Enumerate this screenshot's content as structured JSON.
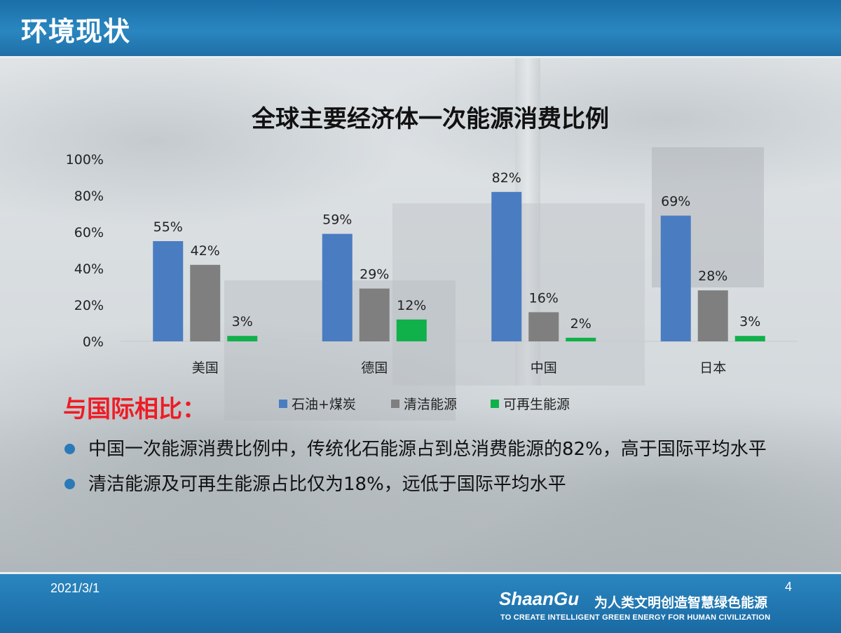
{
  "header": {
    "title": "环境现状"
  },
  "chart_data": {
    "type": "bar",
    "title": "全球主要经济体一次能源消费比例",
    "categories": [
      "美国",
      "德国",
      "中国",
      "日本"
    ],
    "series": [
      {
        "name": "石油+煤炭",
        "color": "#4a7cc1",
        "values": [
          55,
          59,
          82,
          69
        ]
      },
      {
        "name": "清洁能源",
        "color": "#7f7f7f",
        "values": [
          42,
          29,
          16,
          28
        ]
      },
      {
        "name": "可再生能源",
        "color": "#10b04a",
        "values": [
          3,
          12,
          2,
          3
        ]
      }
    ],
    "ylim": [
      0,
      100
    ],
    "yticks": [
      "0%",
      "20%",
      "40%",
      "60%",
      "80%",
      "100%"
    ],
    "value_suffix": "%",
    "grid": false,
    "legend": "bottom"
  },
  "compare_heading": "与国际相比：",
  "bullets": [
    "中国一次能源消费比例中，传统化石能源占到总消费能源的82%，高于国际平均水平",
    "清洁能源及可再生能源占比仅为18%，远低于国际平均水平"
  ],
  "footer": {
    "date": "2021/3/1",
    "page_number": "4",
    "brand": "ShaanGu",
    "slogan_cn": "为人类文明创造智慧绿色能源",
    "slogan_en": "TO CREATE INTELLIGENT GREEN ENERGY FOR HUMAN CIVILIZATION"
  }
}
